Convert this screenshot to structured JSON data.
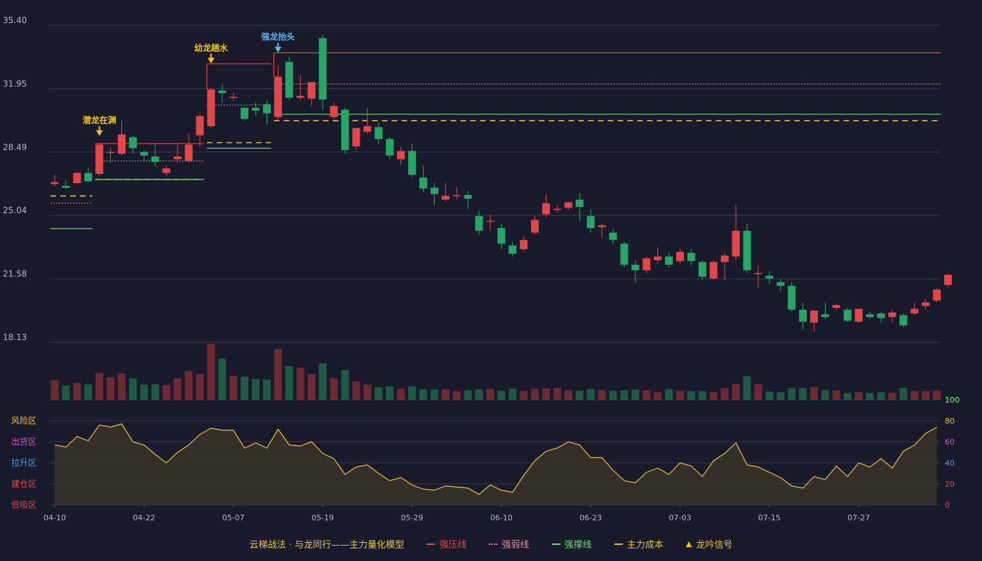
{
  "legend": {
    "title": "云梯战法 · 与龙同行——主力量化模型",
    "items": [
      {
        "label": "强压线",
        "color": "#e2484a",
        "style": "solid"
      },
      {
        "label": "强弱线",
        "color": "#ff7f8a",
        "style": "dotted"
      },
      {
        "label": "强撑线",
        "color": "#5fe36a",
        "style": "solid"
      },
      {
        "label": "主力成本",
        "color": "#f0c419",
        "style": "dashed"
      },
      {
        "label": "龙吟信号",
        "color": "#f0c419",
        "style": "triangle"
      }
    ]
  },
  "colors": {
    "up": "#e2484a",
    "down": "#26a765",
    "bg": "#191a2c",
    "grid": "#3a3b52",
    "axis_text": "#b8b9c6"
  },
  "chart_data": {
    "type": "candlestick",
    "price_axis": {
      "min": 18.13,
      "max": 35.4,
      "ticks": [
        "35.40",
        "31.95",
        "28.49",
        "25.04",
        "21.58",
        "18.13"
      ]
    },
    "x_ticks": [
      {
        "index": 0,
        "label": "04-10"
      },
      {
        "index": 8,
        "label": "04-22"
      },
      {
        "index": 16,
        "label": "05-07"
      },
      {
        "index": 24,
        "label": "05-19"
      },
      {
        "index": 32,
        "label": "05-29"
      },
      {
        "index": 40,
        "label": "06-10"
      },
      {
        "index": 48,
        "label": "06-23"
      },
      {
        "index": 56,
        "label": "07-03"
      },
      {
        "index": 64,
        "label": "07-15"
      },
      {
        "index": 72,
        "label": "07-27"
      }
    ],
    "candles": [
      [
        26.75,
        26.85,
        27.25,
        26.65
      ],
      [
        26.65,
        26.55,
        26.95,
        26.45
      ],
      [
        26.8,
        27.35,
        27.4,
        26.75
      ],
      [
        27.35,
        26.9,
        27.65,
        26.85
      ],
      [
        27.3,
        28.9,
        29.0,
        27.2
      ],
      [
        28.5,
        28.5,
        28.75,
        27.9
      ],
      [
        28.4,
        29.45,
        30.2,
        28.3
      ],
      [
        29.3,
        28.7,
        29.4,
        28.4
      ],
      [
        28.5,
        28.3,
        28.6,
        28.0
      ],
      [
        28.25,
        27.95,
        28.9,
        27.7
      ],
      [
        27.35,
        27.6,
        27.75,
        27.2
      ],
      [
        28.1,
        28.25,
        28.9,
        27.9
      ],
      [
        28.0,
        28.9,
        29.5,
        27.9
      ],
      [
        29.4,
        30.45,
        30.6,
        28.8
      ],
      [
        29.9,
        31.9,
        32.0,
        29.8
      ],
      [
        31.85,
        31.7,
        32.2,
        31.2
      ],
      [
        31.45,
        31.5,
        31.7,
        31.3
      ],
      [
        30.9,
        30.3,
        30.95,
        30.2
      ],
      [
        30.9,
        30.75,
        31.2,
        30.5
      ],
      [
        31.1,
        30.6,
        31.3,
        30.0
      ],
      [
        30.4,
        32.6,
        33.2,
        30.2
      ],
      [
        33.4,
        31.45,
        33.7,
        31.3
      ],
      [
        31.45,
        31.55,
        32.7,
        31.3
      ],
      [
        31.4,
        32.3,
        32.3,
        31.0
      ],
      [
        34.7,
        31.35,
        34.9,
        30.8
      ],
      [
        30.4,
        31.0,
        31.2,
        30.3
      ],
      [
        30.8,
        28.6,
        30.9,
        28.4
      ],
      [
        28.8,
        29.8,
        29.8,
        28.6
      ],
      [
        29.6,
        29.9,
        30.9,
        29.5
      ],
      [
        29.85,
        29.2,
        30.1,
        28.9
      ],
      [
        29.2,
        28.3,
        29.3,
        28.1
      ],
      [
        28.1,
        28.55,
        28.8,
        27.8
      ],
      [
        28.55,
        27.25,
        28.95,
        27.1
      ],
      [
        27.1,
        26.5,
        27.75,
        26.3
      ],
      [
        26.55,
        26.2,
        26.8,
        25.6
      ],
      [
        25.9,
        26.1,
        26.8,
        25.8
      ],
      [
        26.1,
        26.15,
        26.6,
        25.9
      ],
      [
        26.15,
        25.95,
        26.4,
        25.4
      ],
      [
        25.0,
        24.2,
        25.3,
        24.0
      ],
      [
        24.7,
        24.75,
        25.1,
        24.2
      ],
      [
        24.35,
        23.5,
        24.6,
        23.2
      ],
      [
        23.4,
        22.95,
        23.6,
        22.8
      ],
      [
        23.2,
        23.7,
        23.9,
        23.1
      ],
      [
        24.1,
        24.8,
        25.0,
        24.0
      ],
      [
        25.1,
        25.7,
        26.2,
        24.9
      ],
      [
        25.35,
        25.4,
        25.6,
        25.2
      ],
      [
        25.45,
        25.75,
        25.8,
        25.35
      ],
      [
        25.9,
        25.5,
        26.25,
        24.7
      ],
      [
        25.0,
        24.35,
        25.4,
        24.1
      ],
      [
        24.4,
        24.5,
        24.6,
        23.8
      ],
      [
        24.1,
        23.7,
        24.3,
        23.5
      ],
      [
        23.5,
        22.35,
        23.6,
        22.2
      ],
      [
        22.35,
        22.05,
        22.6,
        21.4
      ],
      [
        22.05,
        22.7,
        22.8,
        21.9
      ],
      [
        22.6,
        22.8,
        23.3,
        22.4
      ],
      [
        22.8,
        22.35,
        23.0,
        22.2
      ],
      [
        22.55,
        23.05,
        23.2,
        22.4
      ],
      [
        23.0,
        22.55,
        23.2,
        22.3
      ],
      [
        22.5,
        21.7,
        22.6,
        21.5
      ],
      [
        21.6,
        22.5,
        22.6,
        21.55
      ],
      [
        22.5,
        22.85,
        23.0,
        21.5
      ],
      [
        22.8,
        24.2,
        25.6,
        22.6
      ],
      [
        24.2,
        22.05,
        24.6,
        21.9
      ],
      [
        21.9,
        21.9,
        22.3,
        21.1
      ],
      [
        21.75,
        21.6,
        22.0,
        21.3
      ],
      [
        21.4,
        21.2,
        21.6,
        20.9
      ],
      [
        21.2,
        19.9,
        21.4,
        19.8
      ],
      [
        19.9,
        19.25,
        20.3,
        18.8
      ],
      [
        19.2,
        19.85,
        19.9,
        18.7
      ],
      [
        19.65,
        19.5,
        20.3,
        19.4
      ],
      [
        20.0,
        20.15,
        20.2,
        19.9
      ],
      [
        19.9,
        19.3,
        20.0,
        19.2
      ],
      [
        19.25,
        19.95,
        19.95,
        19.2
      ],
      [
        19.65,
        19.5,
        19.8,
        19.4
      ],
      [
        19.7,
        19.45,
        19.8,
        19.2
      ],
      [
        19.5,
        19.75,
        19.9,
        19.2
      ],
      [
        19.6,
        19.05,
        19.7,
        18.95
      ],
      [
        19.7,
        19.95,
        20.3,
        19.6
      ],
      [
        20.1,
        20.3,
        20.5,
        19.9
      ],
      [
        20.4,
        21.0,
        21.1,
        20.3
      ],
      [
        21.25,
        21.8,
        21.85,
        21.1
      ]
    ],
    "volume": [
      52,
      38,
      45,
      41,
      72,
      60,
      70,
      57,
      40,
      41,
      39,
      57,
      76,
      68,
      150,
      110,
      64,
      62,
      55,
      54,
      135,
      90,
      86,
      69,
      97,
      57,
      79,
      49,
      40,
      33,
      36,
      29,
      36,
      28,
      27,
      28,
      23,
      25,
      28,
      29,
      24,
      30,
      23,
      29,
      30,
      32,
      25,
      24,
      29,
      26,
      24,
      25,
      27,
      25,
      20,
      29,
      24,
      23,
      23,
      20,
      31,
      42,
      63,
      42,
      22,
      20,
      31,
      31,
      34,
      26,
      25,
      18,
      20,
      18,
      20,
      19,
      32,
      23,
      23,
      24
    ],
    "volume_scale": {
      "max_label": "100"
    },
    "indicator": {
      "values": [
        57,
        55,
        65,
        61,
        76,
        74,
        77,
        60,
        57,
        48,
        40,
        50,
        57,
        67,
        73,
        71,
        71,
        54,
        59,
        54,
        72,
        57,
        56,
        60,
        49,
        44,
        29,
        36,
        38,
        30,
        23,
        26,
        19,
        15,
        14,
        18,
        17,
        16,
        10,
        19,
        14,
        12,
        28,
        42,
        51,
        54,
        60,
        57,
        45,
        45,
        33,
        23,
        21,
        31,
        35,
        29,
        40,
        37,
        27,
        42,
        49,
        59,
        38,
        36,
        31,
        26,
        18,
        16,
        27,
        24,
        37,
        27,
        40,
        36,
        44,
        35,
        51,
        57,
        68,
        74
      ],
      "axis_ticks": [
        {
          "v": 100,
          "label": "100",
          "color": "#5fe36a"
        },
        {
          "v": 80,
          "label": "80",
          "color": "#f0c419"
        },
        {
          "v": 60,
          "label": "60",
          "color": "#d94fd6"
        },
        {
          "v": 40,
          "label": "40",
          "color": "#4e9cf0"
        },
        {
          "v": 20,
          "label": "20",
          "color": "#e2484a"
        },
        {
          "v": 0,
          "label": "0",
          "color": "#e2484a"
        }
      ],
      "zones": [
        {
          "label": "风险区",
          "color": "#f0c419"
        },
        {
          "label": "出货区",
          "color": "#d94fd6"
        },
        {
          "label": "拉升区",
          "color": "#4e9cf0"
        },
        {
          "label": "建仓区",
          "color": "#e2484a"
        },
        {
          "label": "低吸区",
          "color": "#e2484a"
        }
      ]
    },
    "signals": [
      {
        "index": 4,
        "label": "潜龙在渊",
        "color": "#f0c419",
        "price": 29.45
      },
      {
        "index": 14,
        "label": "幼龙趟水",
        "color": "#f0c419",
        "price": 33.4
      },
      {
        "index": 20,
        "label": "强龙抬头",
        "color": "#5fb4f0",
        "price": 34.0
      }
    ],
    "levels": [
      {
        "kind": "support",
        "from": 0,
        "to": 3,
        "price": 24.32
      },
      {
        "kind": "cost",
        "from": 0,
        "to": 3,
        "price": 26.1
      },
      {
        "kind": "weak",
        "from": 0,
        "to": 3,
        "price": 25.7
      },
      {
        "kind": "resist",
        "from": 4,
        "to": 13,
        "price": 28.95
      },
      {
        "kind": "weak",
        "from": 4,
        "to": 13,
        "price": 28.0
      },
      {
        "kind": "cost",
        "from": 4,
        "to": 13,
        "price": 27.0
      },
      {
        "kind": "support",
        "from": 4,
        "to": 13,
        "price": 27.0
      },
      {
        "kind": "resist",
        "from": 14,
        "to": 19,
        "price": 33.3
      },
      {
        "kind": "weak",
        "from": 14,
        "to": 19,
        "price": 31.05
      },
      {
        "kind": "cost",
        "from": 14,
        "to": 19,
        "price": 29.0
      },
      {
        "kind": "support",
        "from": 14,
        "to": 19,
        "price": 28.7
      },
      {
        "kind": "resist",
        "from": 20,
        "to": 79,
        "price": 33.9
      },
      {
        "kind": "weak",
        "from": 20,
        "to": 79,
        "price": 32.2
      },
      {
        "kind": "support",
        "from": 20,
        "to": 79,
        "price": 30.55
      },
      {
        "kind": "cost",
        "from": 20,
        "to": 79,
        "price": 30.2
      }
    ]
  }
}
